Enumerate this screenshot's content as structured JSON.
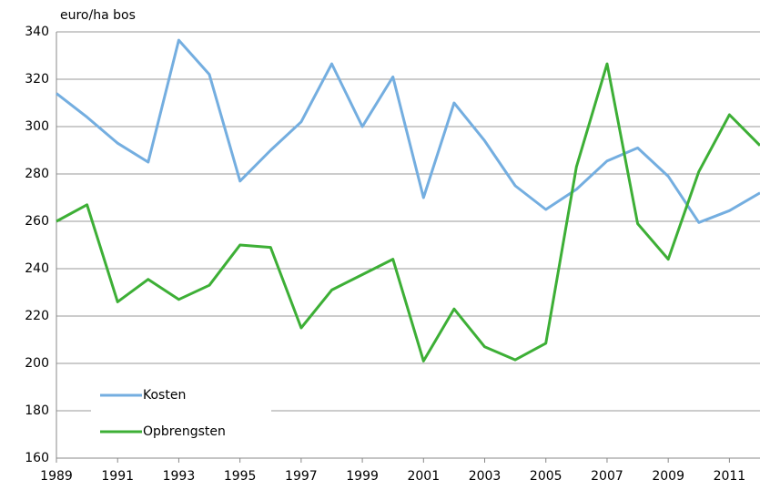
{
  "chart_data": {
    "type": "line",
    "y_axis_label": "euro/ha bos",
    "x": [
      1989,
      1990,
      1991,
      1992,
      1993,
      1994,
      1995,
      1996,
      1997,
      1998,
      1999,
      2000,
      2001,
      2002,
      2003,
      2004,
      2005,
      2006,
      2007,
      2008,
      2009,
      2010,
      2011,
      2012
    ],
    "series": [
      {
        "name": "Kosten",
        "color": "#74aee0",
        "values": [
          314,
          304,
          293,
          285,
          336.5,
          322,
          277,
          290,
          302,
          326.5,
          300,
          321,
          270,
          310,
          294,
          275,
          265,
          273.5,
          285.5,
          291,
          279,
          259.5,
          264.5,
          272
        ]
      },
      {
        "name": "Opbrengsten",
        "color": "#3daf36",
        "values": [
          260,
          267,
          226,
          235.5,
          227,
          233,
          250,
          249,
          215,
          231,
          237.5,
          244,
          201,
          223,
          207,
          201.5,
          208.5,
          283,
          326.5,
          259,
          244,
          281,
          305,
          292
        ]
      }
    ],
    "xlim": [
      1989,
      2012
    ],
    "xticks": [
      1989,
      1991,
      1993,
      1995,
      1997,
      1999,
      2001,
      2003,
      2005,
      2007,
      2009,
      2011
    ],
    "ylim": [
      160,
      340
    ],
    "yticks": [
      160,
      180,
      200,
      220,
      240,
      260,
      280,
      300,
      320,
      340
    ],
    "grid": true,
    "legend": "lower left"
  }
}
